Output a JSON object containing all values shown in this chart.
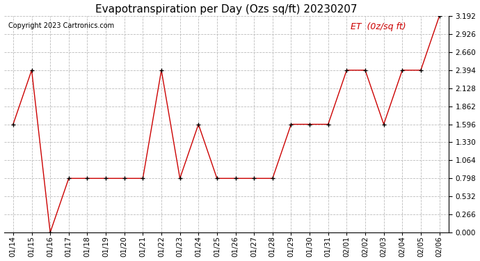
{
  "title": "Evapotranspiration per Day (Ozs sq/ft) 20230207",
  "copyright": "Copyright 2023 Cartronics.com",
  "legend_label": "ET  (0z/sq ft)",
  "dates": [
    "01/14",
    "01/15",
    "01/16",
    "01/17",
    "01/18",
    "01/19",
    "01/20",
    "01/21",
    "01/22",
    "01/23",
    "01/24",
    "01/25",
    "01/26",
    "01/27",
    "01/28",
    "01/29",
    "01/30",
    "01/31",
    "02/01",
    "02/02",
    "02/03",
    "02/04",
    "02/05",
    "02/06"
  ],
  "values": [
    1.596,
    2.394,
    0.0,
    0.798,
    0.798,
    0.798,
    0.798,
    0.798,
    2.394,
    0.798,
    1.596,
    0.798,
    0.798,
    0.798,
    0.798,
    1.596,
    1.596,
    1.596,
    2.394,
    2.394,
    1.596,
    2.394,
    2.394,
    3.192
  ],
  "line_color": "#cc0000",
  "marker_color": "#000000",
  "background_color": "#ffffff",
  "grid_color": "#bbbbbb",
  "title_color": "#000000",
  "copyright_color": "#000000",
  "legend_color": "#cc0000",
  "ylim": [
    0.0,
    3.192
  ],
  "yticks": [
    0.0,
    0.266,
    0.532,
    0.798,
    1.064,
    1.33,
    1.596,
    1.862,
    2.128,
    2.394,
    2.66,
    2.926,
    3.192
  ],
  "title_fontsize": 11,
  "copyright_fontsize": 7,
  "legend_fontsize": 9,
  "tick_fontsize": 7.5
}
